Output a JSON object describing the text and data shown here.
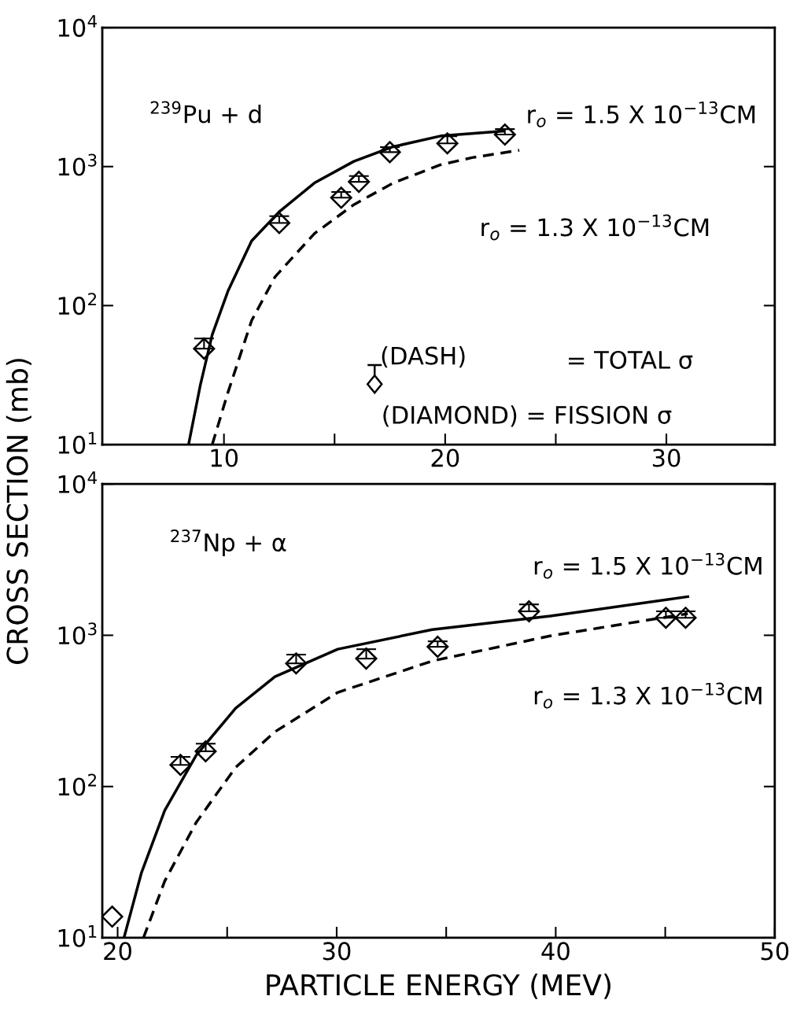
{
  "chart_data": [
    {
      "type": "line",
      "ylabel": "CROSS SECTION (mb)",
      "log": "y",
      "grid": false,
      "xlim": [
        4.5,
        34.9
      ],
      "ylim": [
        10,
        10000
      ],
      "xticks": [
        10,
        {
          "value": 15,
          "label": null
        },
        20,
        {
          "value": 25,
          "label": null
        },
        30
      ],
      "yticks": [
        {
          "value": 10,
          "label": "10$^{1}$"
        },
        {
          "value": 100,
          "label": "10$^{2}$"
        },
        {
          "value": 1000,
          "label": "10$^{3}$"
        },
        {
          "value": 10000,
          "label": "10$^{4}$"
        }
      ],
      "annotations": [
        "$^{239}$Pu + d",
        "(DASH)",
        "= TOTAL σ",
        "(DIAMOND) = FISSION σ",
        "r$_{o}$ = 1.5 X 10$^{−13}$CM",
        "r$_{o}$ = 1.3 X 10$^{−13}$CM"
      ],
      "series": [
        {
          "color": "#000000",
          "line_style": "solid",
          "marker": "none",
          "x": [
            8.4,
            8.93,
            9.47,
            10.18,
            11.25,
            12.49,
            14.09,
            15.87,
            17.65,
            19.79,
            22.63
          ],
          "values": [
            10,
            26.7,
            61.7,
            127,
            292,
            472,
            762,
            1090,
            1390,
            1660,
            1800
          ]
        },
        {
          "color": "#000000",
          "line_style": "dashed",
          "marker": "none",
          "x": [
            9.47,
            10.18,
            11.25,
            12.31,
            14.09,
            15.87,
            17.65,
            19.79,
            21.21,
            23.35
          ],
          "values": [
            10,
            23.7,
            78,
            161,
            330,
            532,
            762,
            1030,
            1160,
            1310
          ]
        },
        {
          "type": "scatter",
          "color": "#000000",
          "marker": "diamond",
          "x": [
            9.1,
            12.5,
            15.3,
            16.1,
            17.5,
            20.1,
            22.7
          ],
          "values": [
            49,
            393,
            597,
            777,
            1270,
            1470,
            1700
          ],
          "errors": [
            [
              49,
              58
            ],
            [
              393,
              440
            ],
            [
              597,
              657
            ],
            [
              777,
              855
            ],
            [
              1270,
              1380
            ],
            [
              1470,
              1650
            ],
            [
              1700,
              1860
            ]
          ]
        }
      ]
    },
    {
      "type": "line",
      "xlabel": "PARTICLE ENERGY (MEV)",
      "log": "y",
      "grid": false,
      "xlim": [
        19.3,
        50
      ],
      "ylim": [
        10,
        10000
      ],
      "xticks": [
        20,
        {
          "value": 25,
          "label": null
        },
        30,
        {
          "value": 35,
          "label": null
        },
        40,
        {
          "value": 45,
          "label": null
        },
        50
      ],
      "yticks": [
        {
          "value": 10,
          "label": "10$^{1}$"
        },
        {
          "value": 100,
          "label": "10$^{2}$"
        },
        {
          "value": 1000,
          "label": "10$^{3}$"
        },
        {
          "value": 10000,
          "label": "10$^{4}$"
        }
      ],
      "annotations": [
        "$^{237}$Np + α",
        "r$_{o}$ = 1.5 X 10$^{−13}$CM",
        "r$_{o}$ = 1.3 X 10$^{−13}$CM"
      ],
      "series": [
        {
          "color": "#000000",
          "line_style": "solid",
          "marker": "none",
          "x": [
            20.29,
            21.08,
            22.15,
            23.59,
            25.39,
            27.18,
            30.05,
            34.36,
            39.75,
            46.03
          ],
          "values": [
            10,
            26.7,
            69.5,
            161,
            330,
            532,
            809,
            1090,
            1340,
            1800
          ]
        },
        {
          "color": "#000000",
          "line_style": "dashed",
          "marker": "none",
          "x": [
            21.18,
            22.15,
            23.59,
            25.39,
            27.18,
            30.05,
            34.36,
            39.75,
            46.03
          ],
          "values": [
            10,
            23.7,
            58,
            134,
            230,
            419,
            676,
            991,
            1390
          ]
        },
        {
          "type": "scatter",
          "color": "#000000",
          "marker": "diamond",
          "x": [
            19.75,
            22.87,
            24.02,
            28.15,
            31.35,
            34.61,
            38.78,
            45.03,
            45.93
          ],
          "values": [
            13.8,
            139,
            171,
            652,
            701,
            839,
            1440,
            1306,
            1306
          ],
          "errors": [
            null,
            [
              139,
              157
            ],
            [
              171,
              192
            ],
            [
              652,
              745
            ],
            [
              701,
              809
            ],
            [
              839,
              912
            ],
            [
              1440,
              1600
            ],
            [
              1306,
              1440
            ],
            [
              1306,
              1440
            ]
          ]
        }
      ]
    }
  ]
}
